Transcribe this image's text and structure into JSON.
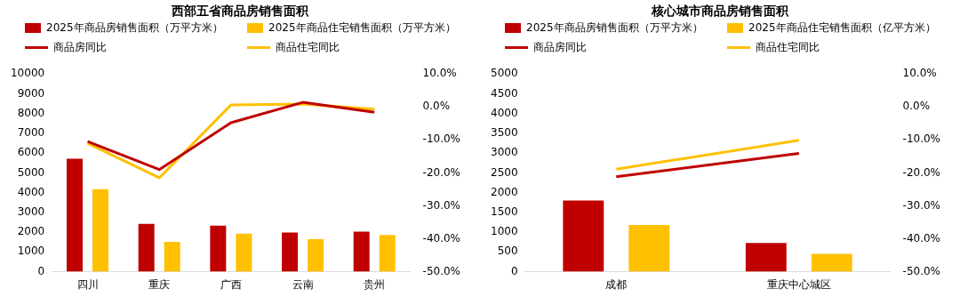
{
  "chart_data": [
    {
      "type": "bar",
      "title": "西部五省商品房销售面积",
      "categories": [
        "四川",
        "重庆",
        "广西",
        "云南",
        "贵州"
      ],
      "series": [
        {
          "name": "2025年商品房销售面积（万平方米）",
          "color": "#c00000",
          "values": [
            5720,
            2420,
            2330,
            1980,
            2030
          ]
        },
        {
          "name": "2025年商品住宅销售面积（万平方米）",
          "color": "#ffc000",
          "values": [
            4180,
            1510,
            1930,
            1650,
            1860
          ]
        },
        {
          "name": "商品房同比",
          "type": "line",
          "axis": "y2",
          "color": "#c00000",
          "values": [
            -10.5,
            -19.0,
            -4.8,
            1.4,
            -1.6
          ]
        },
        {
          "name": "商品住宅同比",
          "type": "line",
          "axis": "y2",
          "color": "#ffc000",
          "values": [
            -11.0,
            -21.5,
            0.6,
            0.9,
            -0.7
          ]
        }
      ],
      "ylim": [
        0,
        10000
      ],
      "yticks": [
        0,
        1000,
        2000,
        3000,
        4000,
        5000,
        6000,
        7000,
        8000,
        9000,
        10000
      ],
      "y2lim": [
        -50,
        10
      ],
      "y2ticks": [
        {
          "value": -50,
          "label": "-50.0%"
        },
        {
          "value": -40,
          "label": "-40.0%"
        },
        {
          "value": -30,
          "label": "-30.0%"
        },
        {
          "value": -20,
          "label": "-20.0%"
        },
        {
          "value": -10,
          "label": "-10.0%"
        },
        {
          "value": 0,
          "label": "0.0%"
        },
        {
          "value": 10,
          "label": "10.0%"
        }
      ],
      "grid": false,
      "legend": "top",
      "marker": "none"
    },
    {
      "type": "bar",
      "title": "核心城市商品房销售面积",
      "categories": [
        "成都",
        "重庆中心城区"
      ],
      "series": [
        {
          "name": "2025年商品房销售面积（万平方米）",
          "color": "#c00000",
          "values": [
            1800,
            730
          ]
        },
        {
          "name": "2025年商品住宅销售面积（亿平方米）",
          "color": "#ffc000",
          "values": [
            1180,
            450
          ]
        },
        {
          "name": "商品房同比",
          "type": "line",
          "axis": "y2",
          "color": "#c00000",
          "values": [
            -21.2,
            -14.1
          ]
        },
        {
          "name": "商品住宅同比",
          "type": "line",
          "axis": "y2",
          "color": "#ffc000",
          "values": [
            -18.9,
            -10.1
          ]
        }
      ],
      "ylim": [
        0,
        5000
      ],
      "yticks": [
        0,
        500,
        1000,
        1500,
        2000,
        2500,
        3000,
        3500,
        4000,
        4500,
        5000
      ],
      "y2lim": [
        -50,
        10
      ],
      "y2ticks": [
        {
          "value": -50,
          "label": "-50.0%"
        },
        {
          "value": -40,
          "label": "-40.0%"
        },
        {
          "value": -30,
          "label": "-30.0%"
        },
        {
          "value": -20,
          "label": "-20.0%"
        },
        {
          "value": -10,
          "label": "-10.0%"
        },
        {
          "value": 0,
          "label": "0.0%"
        },
        {
          "value": 10,
          "label": "10.0%"
        }
      ],
      "grid": false,
      "legend": "top",
      "marker": "none"
    }
  ]
}
